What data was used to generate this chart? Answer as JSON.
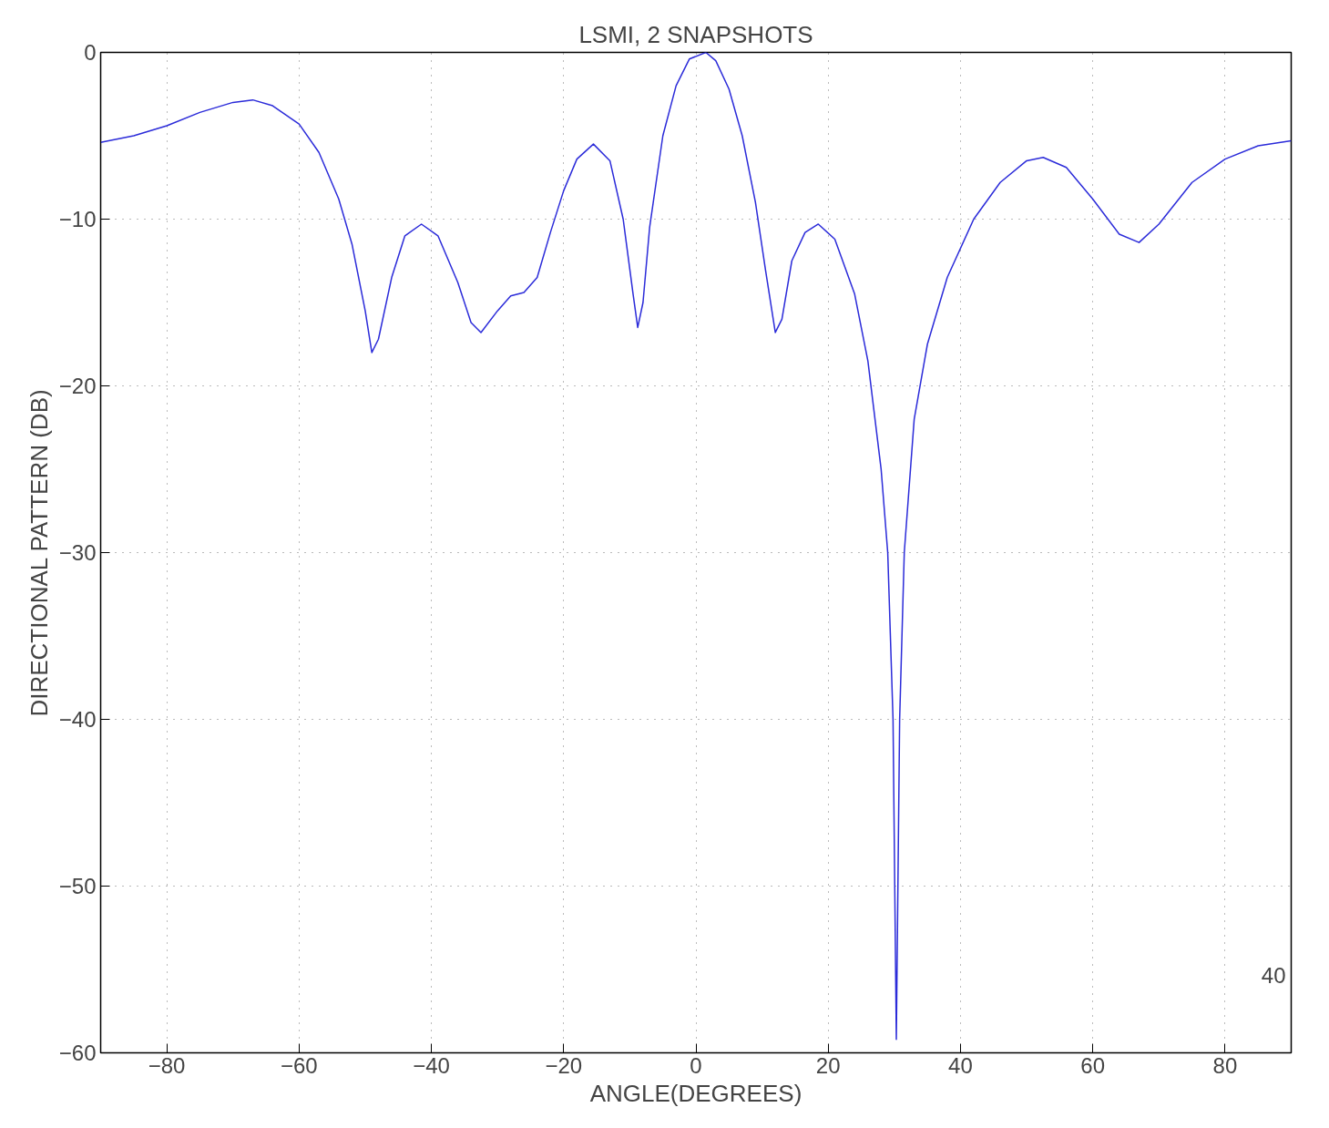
{
  "chart_data": {
    "type": "line",
    "title": "LSMI, 2 SNAPSHOTS",
    "xlabel": "ANGLE(DEGREES)",
    "ylabel": "DIRECTIONAL PATTERN (DB)",
    "xlim": [
      -90,
      90
    ],
    "ylim": [
      -60,
      0
    ],
    "xticks": [
      {
        "value": -80,
        "label": "−80"
      },
      {
        "value": -60,
        "label": "−60"
      },
      {
        "value": -40,
        "label": "−40"
      },
      {
        "value": -20,
        "label": "−20"
      },
      0,
      20,
      40,
      60,
      80
    ],
    "yticks": [
      {
        "value": -60,
        "label": "−60"
      },
      {
        "value": -50,
        "label": "−50"
      },
      {
        "value": -40,
        "label": "−40"
      },
      {
        "value": -30,
        "label": "−30"
      },
      {
        "value": -20,
        "label": "−20"
      },
      {
        "value": -10,
        "label": "−10"
      },
      0
    ],
    "grid": true,
    "line_style": "solid",
    "marker": "none",
    "annotations": [
      "40"
    ],
    "series": [
      {
        "color": "#2b2bd9",
        "x": [
          -90,
          -85,
          -80,
          -75,
          -70,
          -67,
          -64,
          -60,
          -57,
          -54,
          -52,
          -50,
          -49,
          -48,
          -46,
          -44,
          -41.5,
          -39,
          -36,
          -34,
          -32.5,
          -30,
          -28,
          -26,
          -24,
          -22,
          -20,
          -18,
          -15.5,
          -13,
          -11,
          -9.5,
          -8.8,
          -8,
          -7,
          -5,
          -3,
          -1,
          1.5,
          3,
          5,
          7,
          9,
          10.5,
          12,
          13,
          14.5,
          16.5,
          18.5,
          21,
          24,
          26,
          28,
          29,
          29.8,
          30.3,
          30.8,
          31.5,
          33,
          35,
          38,
          42,
          46,
          50,
          52.5,
          56,
          60,
          64,
          67,
          70,
          75,
          80,
          85,
          90
        ],
        "values": [
          -5.4,
          -5.0,
          -4.4,
          -3.6,
          -3.0,
          -2.85,
          -3.2,
          -4.3,
          -6.0,
          -8.8,
          -11.5,
          -15.5,
          -18.0,
          -17.2,
          -13.5,
          -11.0,
          -10.3,
          -11.0,
          -13.8,
          -16.2,
          -16.8,
          -15.5,
          -14.6,
          -14.4,
          -13.5,
          -10.8,
          -8.3,
          -6.4,
          -5.5,
          -6.5,
          -10.0,
          -14.5,
          -16.5,
          -15.0,
          -10.5,
          -5.0,
          -2.0,
          -0.4,
          0,
          -0.5,
          -2.2,
          -5.0,
          -9.0,
          -13.0,
          -16.8,
          -16.0,
          -12.5,
          -10.8,
          -10.3,
          -11.2,
          -14.5,
          -18.5,
          -25,
          -30,
          -40,
          -59.2,
          -40,
          -30,
          -22,
          -17.5,
          -13.5,
          -10.0,
          -7.8,
          -6.5,
          -6.3,
          -6.9,
          -8.8,
          -10.9,
          -11.4,
          -10.3,
          -7.8,
          -6.4,
          -5.6,
          -5.3
        ]
      }
    ]
  }
}
